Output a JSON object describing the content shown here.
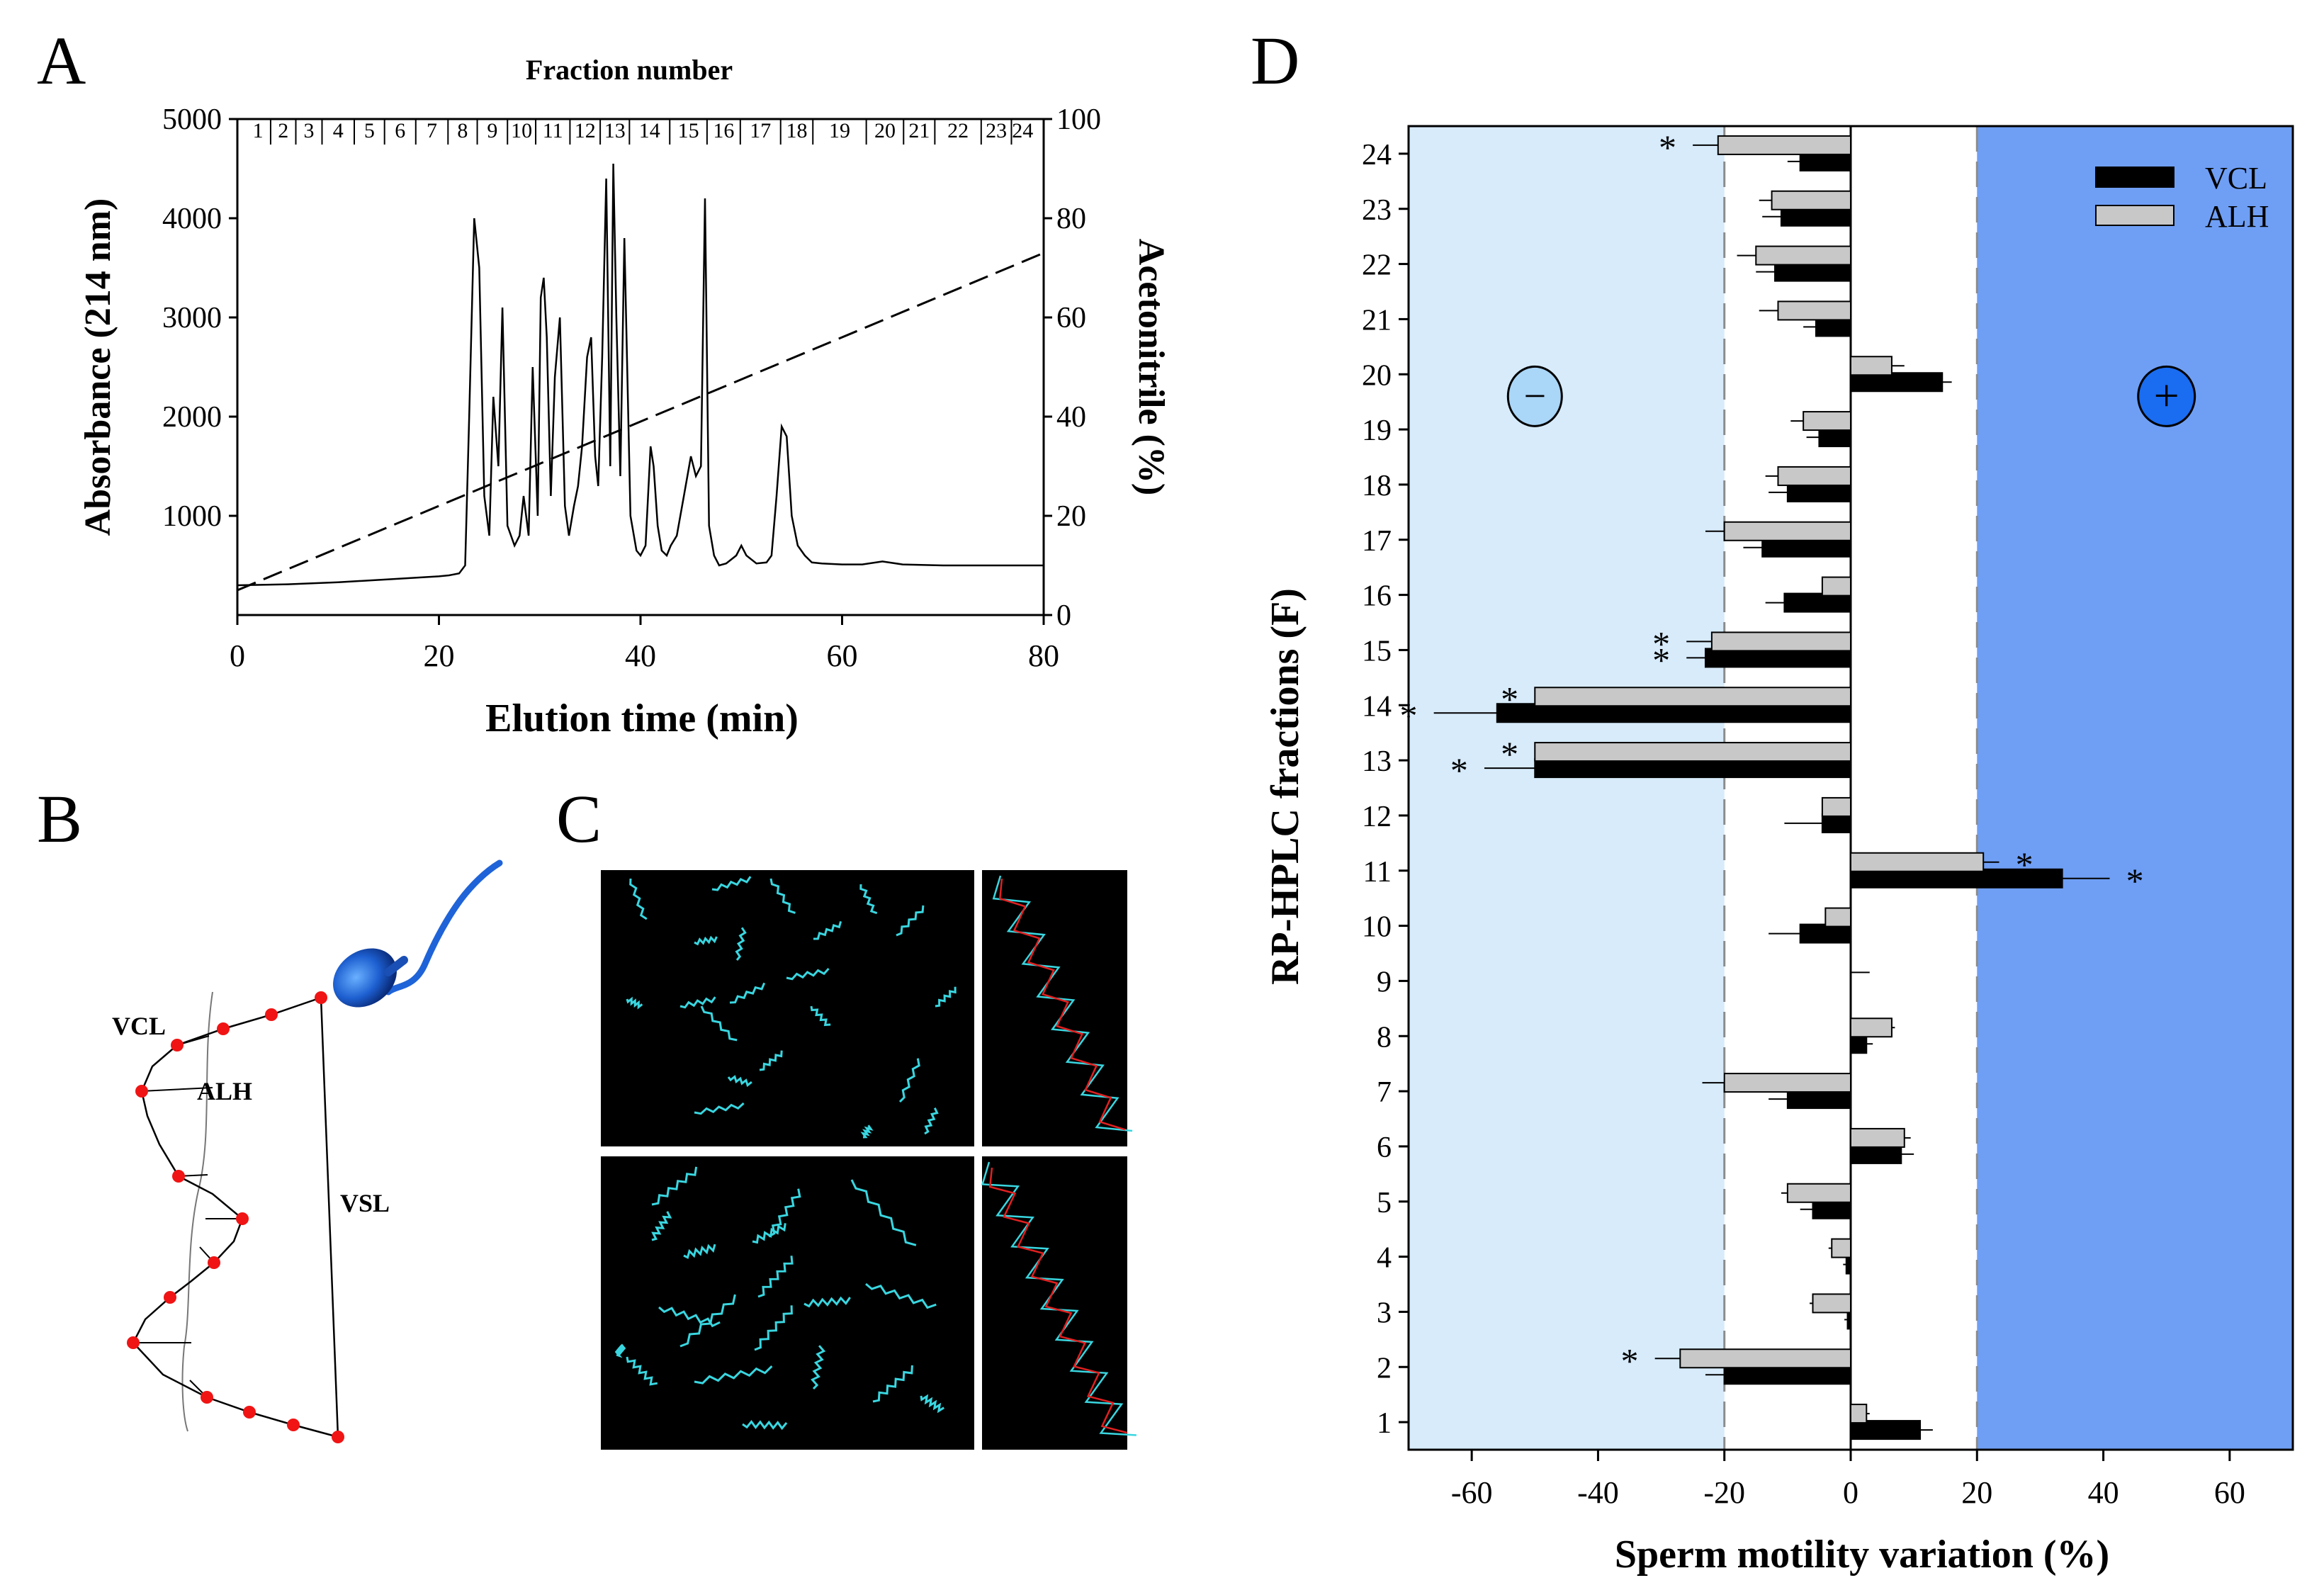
{
  "panels": {
    "A": "A",
    "B": "B",
    "C": "C",
    "D": "D"
  },
  "chart_data": [
    {
      "id": "A",
      "type": "line",
      "title": "Fraction number",
      "xlabel": "Elution time (min)",
      "ylabel": "Absorbance (214 nm)",
      "y2label": "Acetonitrile (%)",
      "xlim": [
        0,
        80
      ],
      "ylim": [
        0,
        5000
      ],
      "y2lim": [
        0,
        100
      ],
      "xticks": [
        0,
        20,
        40,
        60,
        80
      ],
      "yticks": [
        1000,
        2000,
        3000,
        4000,
        5000
      ],
      "y2ticks": [
        0,
        20,
        40,
        60,
        80,
        100
      ],
      "fractions": [
        "1",
        "2",
        "3",
        "4",
        "5",
        "6",
        "7",
        "8",
        "9",
        "10",
        "11",
        "12",
        "13",
        "14",
        "15",
        "16",
        "17",
        "18",
        "19",
        "20",
        "21",
        "22",
        "23",
        "24"
      ],
      "fraction_bounds": [
        0.8,
        3.3,
        5.8,
        8.4,
        11.6,
        14.6,
        17.7,
        20.9,
        23.8,
        26.8,
        29.6,
        33.0,
        36.0,
        38.9,
        42.9,
        46.6,
        49.9,
        53.9,
        57.1,
        62.4,
        66.1,
        69.2,
        73.8,
        76.8
      ],
      "series": [
        {
          "name": "Absorbance",
          "axis": "left",
          "style": "solid",
          "x": [
            0,
            5,
            10,
            15,
            20,
            21,
            22,
            22.6,
            23,
            23.5,
            24,
            24.5,
            25,
            25.4,
            25.9,
            26.3,
            26.8,
            27.5,
            28,
            28.4,
            28.9,
            29.3,
            29.8,
            30.1,
            30.4,
            30.7,
            31.1,
            31.5,
            32,
            32.5,
            32.9,
            33.4,
            33.8,
            34.2,
            34.7,
            35.1,
            35.5,
            35.8,
            36.2,
            36.6,
            37,
            37.3,
            37.6,
            38,
            38.4,
            39,
            39.6,
            40,
            40.5,
            41,
            41.3,
            41.7,
            42.1,
            42.6,
            43,
            43.6,
            44.3,
            45,
            45.5,
            46,
            46.4,
            46.8,
            47.3,
            47.8,
            48.5,
            49.5,
            50,
            50.5,
            51.5,
            52.5,
            53,
            53.5,
            54,
            54.5,
            55,
            55.6,
            56.3,
            57,
            58,
            60,
            62,
            64,
            66,
            70,
            75,
            80
          ],
          "y": [
            300,
            310,
            330,
            360,
            390,
            400,
            420,
            500,
            2000,
            4000,
            3500,
            1200,
            800,
            2200,
            1500,
            3100,
            900,
            700,
            800,
            1200,
            800,
            2500,
            1000,
            3200,
            3400,
            2800,
            1200,
            2400,
            3000,
            1100,
            800,
            1100,
            1300,
            1700,
            2600,
            2800,
            1600,
            1300,
            2600,
            4400,
            1500,
            4550,
            3000,
            1400,
            3800,
            1000,
            650,
            600,
            700,
            1700,
            1500,
            900,
            650,
            600,
            700,
            800,
            1200,
            1600,
            1400,
            1500,
            4200,
            900,
            600,
            500,
            520,
            600,
            700,
            600,
            520,
            530,
            600,
            1200,
            1900,
            1800,
            1000,
            700,
            600,
            530,
            520,
            510,
            510,
            540,
            510,
            500,
            500,
            500
          ]
        },
        {
          "name": "Acetonitrile",
          "axis": "right",
          "style": "dashed",
          "x": [
            0,
            80
          ],
          "y": [
            5,
            73
          ]
        }
      ]
    },
    {
      "id": "B",
      "type": "diagram",
      "labels": {
        "vcl": "VCL",
        "alh": "ALH",
        "vsl": "VSL"
      }
    },
    {
      "id": "C",
      "type": "image",
      "description_free": true
    },
    {
      "id": "D",
      "type": "bar",
      "orientation": "horizontal",
      "xlabel": "Sperm motility variation (%)",
      "ylabel": "RP-HPLC fractions (F)",
      "xlim": [
        -70,
        70
      ],
      "xticks": [
        -60,
        -40,
        -20,
        0,
        20,
        40,
        60
      ],
      "regions": [
        {
          "from": -70,
          "to": -20,
          "color": "#d7ebfb",
          "symbol": "−"
        },
        {
          "from": 20,
          "to": 70,
          "color": "#6f9ff5",
          "symbol": "+"
        }
      ],
      "thresholds": [
        -20,
        20
      ],
      "categories": [
        "1",
        "2",
        "3",
        "4",
        "5",
        "6",
        "7",
        "8",
        "9",
        "10",
        "11",
        "12",
        "13",
        "14",
        "15",
        "16",
        "17",
        "18",
        "19",
        "20",
        "21",
        "22",
        "23",
        "24"
      ],
      "series": [
        {
          "name": "VCL",
          "color": "#000000",
          "values": [
            11,
            -20,
            -0.5,
            -0.7,
            -6,
            8,
            -10,
            2.5,
            0,
            -8,
            33.5,
            -4.5,
            -50,
            -56,
            -23,
            -10.5,
            -14,
            -10,
            -5,
            14.5,
            -5.5,
            -12,
            -11,
            -8
          ],
          "errors": [
            2,
            3,
            0.5,
            0.5,
            2,
            2,
            3,
            1,
            0,
            5,
            7.5,
            6,
            8,
            10,
            3,
            3,
            3,
            3,
            2,
            1.5,
            2,
            3,
            3,
            2
          ],
          "stars": [
            "",
            "",
            "",
            "",
            "",
            "",
            "",
            "",
            "",
            "",
            "*",
            "",
            "*",
            "*",
            "*",
            "",
            "",
            "",
            "",
            "",
            "",
            "",
            "",
            ""
          ]
        },
        {
          "name": "ALH",
          "color": "#c8c8c8",
          "values": [
            2.5,
            -27,
            -6,
            -3,
            -10,
            8.5,
            -20,
            6.5,
            0,
            -4,
            21,
            -4.5,
            -50,
            -50,
            -22,
            -4.5,
            -20,
            -11.5,
            -7.5,
            6.5,
            -11.5,
            -15,
            -12.5,
            -21
          ],
          "errors": [
            0.5,
            4,
            0.5,
            0.5,
            1,
            1,
            3.5,
            0.5,
            3,
            0,
            2.5,
            0,
            0,
            0,
            4,
            0,
            3,
            2,
            2,
            2,
            3,
            3,
            2,
            4
          ],
          "stars": [
            "",
            "*",
            "",
            "",
            "",
            "",
            "",
            "",
            "",
            "",
            "*",
            "",
            "*",
            "*",
            "*",
            "",
            "",
            "",
            "",
            "",
            "",
            "",
            "",
            "*"
          ]
        }
      ],
      "legend": [
        "VCL",
        "ALH"
      ]
    }
  ]
}
